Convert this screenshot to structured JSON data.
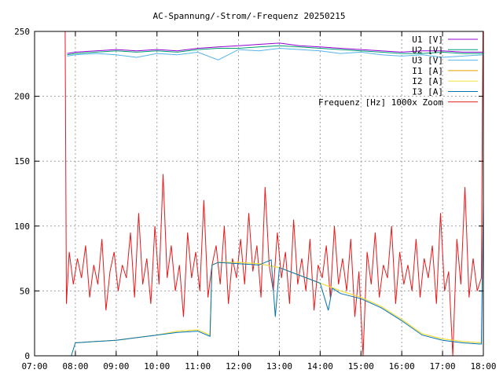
{
  "chart_data": {
    "type": "line",
    "title": "AC-Spannung/-Strom/-Frequenz 20250215",
    "xlabel": "",
    "ylabel": "",
    "xlim": [
      7,
      18
    ],
    "ylim": [
      0,
      250
    ],
    "grid": true,
    "legend_position": "top-right",
    "x_tick_labels": [
      "07:00",
      "08:00",
      "09:00",
      "10:00",
      "11:00",
      "12:00",
      "13:00",
      "14:00",
      "15:00",
      "16:00",
      "17:00",
      "18:00"
    ],
    "x_tick_values": [
      7,
      8,
      9,
      10,
      11,
      12,
      13,
      14,
      15,
      16,
      17,
      18
    ],
    "y_tick_values": [
      0,
      50,
      100,
      150,
      200,
      250
    ],
    "series": [
      {
        "name": "U1 [V]",
        "color": "#9400d3",
        "x": [
          7.8,
          8.0,
          8.5,
          9.0,
          9.5,
          10.0,
          10.5,
          11.0,
          11.5,
          12.0,
          12.5,
          13.0,
          13.5,
          14.0,
          14.5,
          15.0,
          15.5,
          16.0,
          16.5,
          17.0,
          17.5,
          18.0
        ],
        "y": [
          233,
          234,
          235,
          236,
          235,
          236,
          235,
          237,
          238,
          239,
          240,
          241,
          239,
          238,
          237,
          236,
          235,
          234,
          235,
          235,
          234,
          234
        ]
      },
      {
        "name": "U2 [V]",
        "color": "#009e73",
        "x": [
          7.8,
          8.0,
          8.5,
          9.0,
          9.5,
          10.0,
          10.5,
          11.0,
          11.5,
          12.0,
          12.5,
          13.0,
          13.5,
          14.0,
          14.5,
          15.0,
          15.5,
          16.0,
          16.5,
          17.0,
          17.5,
          18.0
        ],
        "y": [
          232,
          233,
          234,
          235,
          234,
          235,
          234,
          236,
          237,
          237,
          238,
          239,
          238,
          237,
          236,
          235,
          234,
          233,
          233,
          234,
          233,
          233
        ]
      },
      {
        "name": "U3 [V]",
        "color": "#56b4e9",
        "x": [
          7.8,
          8.0,
          8.5,
          9.0,
          9.5,
          10.0,
          10.5,
          11.0,
          11.5,
          12.0,
          12.5,
          13.0,
          13.5,
          14.0,
          14.5,
          15.0,
          15.5,
          16.0,
          16.5,
          17.0,
          17.5,
          18.0
        ],
        "y": [
          231,
          232,
          233,
          232,
          230,
          233,
          232,
          234,
          228,
          236,
          235,
          237,
          236,
          235,
          233,
          234,
          232,
          231,
          232,
          230,
          231,
          232
        ]
      },
      {
        "name": "I1 [A]",
        "color": "#e69f00",
        "x": [
          8.0,
          8.5,
          9.0,
          9.5,
          10.0,
          10.5,
          11.0,
          11.3,
          11.35,
          11.5,
          12.0,
          12.5,
          13.0,
          13.5,
          14.0,
          14.5,
          15.0,
          15.5,
          16.0,
          16.5,
          17.0,
          17.5,
          17.95
        ],
        "y": [
          10,
          11,
          12,
          14,
          16,
          19,
          20,
          16,
          70,
          72,
          72,
          71,
          68,
          62,
          56,
          50,
          45,
          38,
          28,
          17,
          13,
          11,
          10
        ]
      },
      {
        "name": "I2 [A]",
        "color": "#f0e442",
        "x": [
          8.0,
          8.5,
          9.0,
          9.5,
          10.0,
          10.5,
          11.0,
          11.3,
          11.35,
          11.5,
          12.0,
          12.5,
          13.0,
          13.5,
          14.0,
          14.5,
          15.0,
          15.5,
          16.0,
          16.5,
          17.0,
          17.5,
          17.95
        ],
        "y": [
          10,
          11,
          12,
          14,
          16,
          19,
          20,
          16,
          70,
          72,
          72,
          71,
          68,
          62,
          56,
          50,
          45,
          38,
          28,
          17,
          13,
          11,
          10
        ]
      },
      {
        "name": "I3 [A]",
        "color": "#0072b2",
        "x": [
          7.9,
          8.0,
          8.5,
          9.0,
          9.5,
          10.0,
          10.5,
          11.0,
          11.3,
          11.35,
          11.5,
          12.0,
          12.5,
          12.8,
          12.9,
          13.0,
          13.5,
          14.0,
          14.2,
          14.3,
          14.5,
          15.0,
          15.5,
          16.0,
          16.5,
          17.0,
          17.5,
          17.95,
          18.0
        ],
        "y": [
          0,
          10,
          11,
          12,
          14,
          16,
          18,
          19,
          15,
          70,
          72,
          71,
          70,
          74,
          30,
          68,
          62,
          56,
          35,
          52,
          48,
          44,
          37,
          27,
          16,
          12,
          10,
          9,
          118
        ]
      },
      {
        "name": "Frequenz [Hz] 1000x Zoom",
        "color": "#e41a1c",
        "x": [
          7.75,
          7.78,
          7.85,
          7.95,
          8.05,
          8.15,
          8.25,
          8.35,
          8.45,
          8.55,
          8.65,
          8.75,
          8.85,
          8.95,
          9.05,
          9.15,
          9.25,
          9.35,
          9.45,
          9.55,
          9.65,
          9.75,
          9.85,
          9.95,
          10.05,
          10.15,
          10.25,
          10.35,
          10.45,
          10.55,
          10.65,
          10.75,
          10.85,
          10.95,
          11.05,
          11.15,
          11.25,
          11.35,
          11.45,
          11.55,
          11.65,
          11.75,
          11.85,
          11.95,
          12.05,
          12.15,
          12.25,
          12.35,
          12.45,
          12.55,
          12.65,
          12.75,
          12.85,
          12.95,
          13.05,
          13.15,
          13.25,
          13.35,
          13.45,
          13.55,
          13.65,
          13.75,
          13.85,
          13.95,
          14.05,
          14.15,
          14.25,
          14.35,
          14.45,
          14.55,
          14.65,
          14.75,
          14.85,
          14.95,
          15.05,
          15.15,
          15.25,
          15.35,
          15.45,
          15.55,
          15.65,
          15.75,
          15.85,
          15.95,
          16.05,
          16.15,
          16.25,
          16.35,
          16.45,
          16.55,
          16.65,
          16.75,
          16.85,
          16.95,
          17.05,
          17.15,
          17.25,
          17.35,
          17.45,
          17.55,
          17.65,
          17.75,
          17.85,
          17.95,
          17.99
        ],
        "y": [
          250,
          40,
          80,
          55,
          75,
          60,
          85,
          45,
          70,
          55,
          90,
          35,
          65,
          80,
          50,
          70,
          60,
          95,
          45,
          110,
          55,
          75,
          40,
          100,
          55,
          140,
          60,
          85,
          50,
          70,
          30,
          95,
          60,
          80,
          50,
          120,
          45,
          70,
          85,
          55,
          100,
          40,
          75,
          60,
          90,
          55,
          110,
          65,
          85,
          45,
          130,
          70,
          50,
          95,
          60,
          80,
          40,
          105,
          55,
          75,
          50,
          90,
          35,
          70,
          60,
          85,
          45,
          100,
          55,
          75,
          50,
          90,
          30,
          65,
          0,
          80,
          55,
          95,
          45,
          70,
          60,
          100,
          40,
          80,
          55,
          70,
          50,
          90,
          45,
          75,
          60,
          85,
          40,
          110,
          50,
          65,
          0,
          90,
          55,
          130,
          45,
          75,
          50,
          60,
          250
        ]
      }
    ]
  }
}
